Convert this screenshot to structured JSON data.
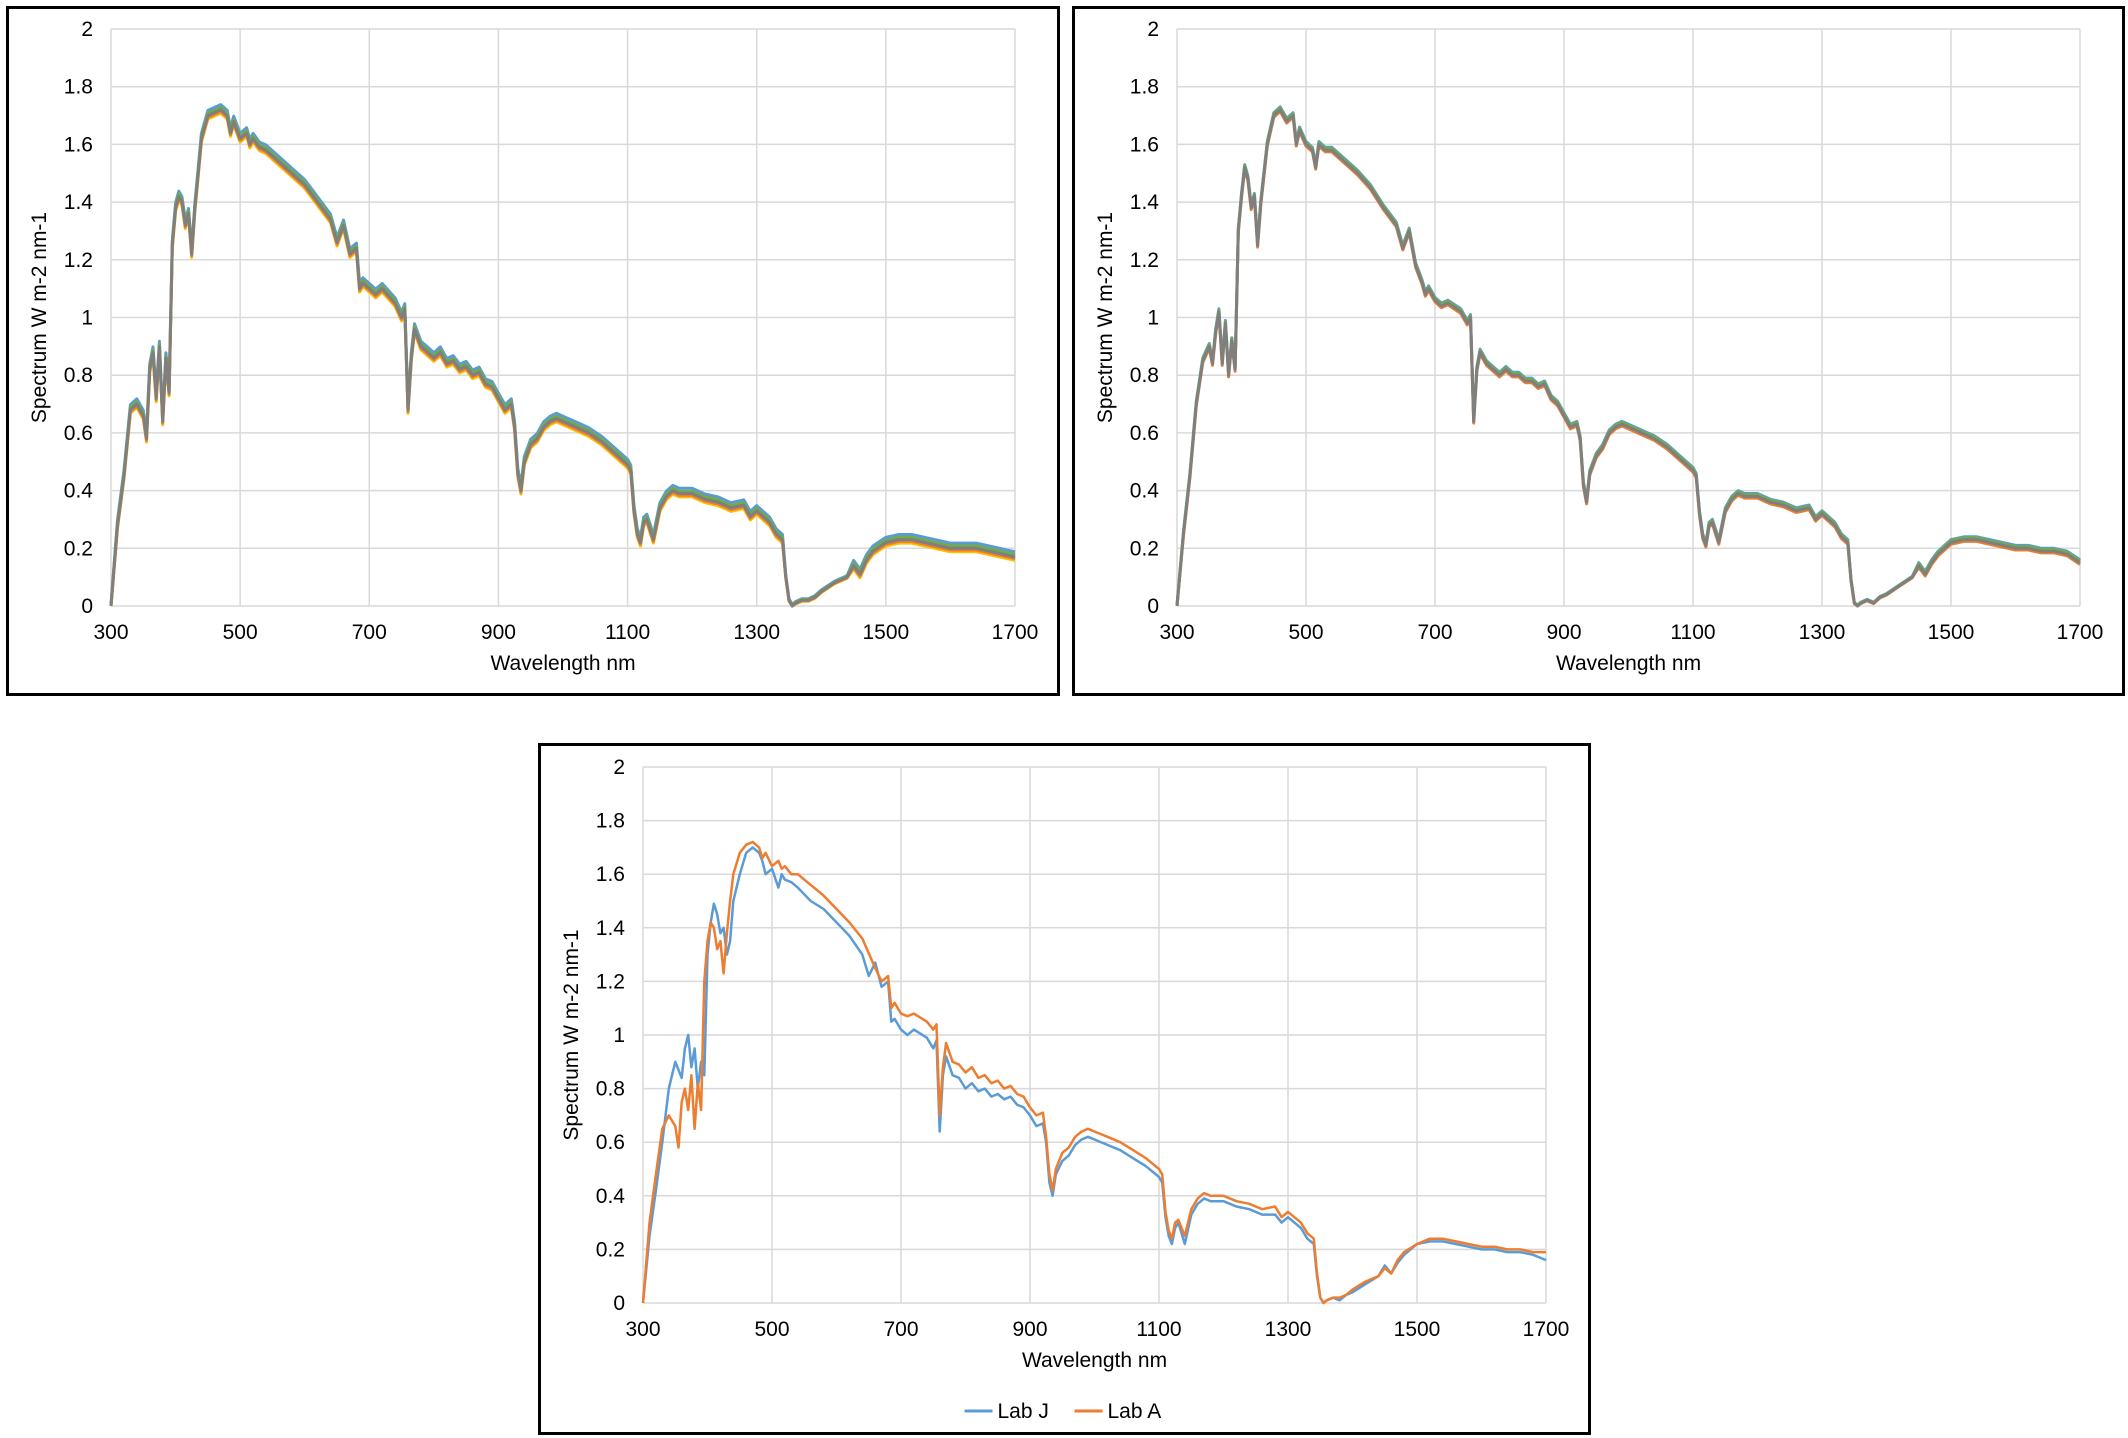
{
  "chart_data": [
    {
      "type": "line",
      "xlabel": "Wavelength nm",
      "ylabel": "Spectrum W m-2 nm-1",
      "xlim": [
        300,
        1700
      ],
      "ylim": [
        0,
        2
      ],
      "xticks": [
        "300",
        "500",
        "700",
        "900",
        "1100",
        "1300",
        "1500",
        "1700"
      ],
      "yticks": [
        "0",
        "0.2",
        "0.4",
        "0.6",
        "0.8",
        "1",
        "1.2",
        "1.4",
        "1.6",
        "1.8",
        "2"
      ],
      "grid": true,
      "legend": "none",
      "series": [
        {
          "color": "#5b9bd5",
          "offset": 0.018
        },
        {
          "color": "#ffc000",
          "offset": -0.012
        },
        {
          "color": "#70ad47",
          "offset": 0.008
        },
        {
          "color": "#ed7d31",
          "offset": -0.006
        },
        {
          "color": "#7f7f7f",
          "offset": 0.0
        }
      ]
    },
    {
      "type": "line",
      "xlabel": "Wavelength nm",
      "ylabel": "Spectrum W m-2 nm-1",
      "xlim": [
        300,
        1700
      ],
      "ylim": [
        0,
        2
      ],
      "xticks": [
        "300",
        "500",
        "700",
        "900",
        "1100",
        "1300",
        "1500",
        "1700"
      ],
      "yticks": [
        "0",
        "0.2",
        "0.4",
        "0.6",
        "0.8",
        "1",
        "1.2",
        "1.4",
        "1.6",
        "1.8",
        "2"
      ],
      "grid": true,
      "legend": "none",
      "series": [
        {
          "color": "#5b9bd5",
          "offset": 0.01
        },
        {
          "color": "#70ad47",
          "offset": 0.006
        },
        {
          "color": "#ed7d31",
          "offset": -0.006
        },
        {
          "color": "#7f7f7f",
          "offset": 0.0
        }
      ]
    },
    {
      "type": "line",
      "xlabel": "Wavelength nm",
      "ylabel": "Spectrum W m-2 nm-1",
      "xlim": [
        300,
        1700
      ],
      "ylim": [
        0,
        2
      ],
      "xticks": [
        "300",
        "500",
        "700",
        "900",
        "1100",
        "1300",
        "1500",
        "1700"
      ],
      "yticks": [
        "0",
        "0.2",
        "0.4",
        "0.6",
        "0.8",
        "1",
        "1.2",
        "1.4",
        "1.6",
        "1.8",
        "2"
      ],
      "grid": true,
      "legend": "bottom-center",
      "series": [
        {
          "name": "Lab J",
          "color": "#5b9bd5",
          "x": [
            300,
            310,
            320,
            330,
            340,
            350,
            360,
            365,
            370,
            375,
            380,
            385,
            390,
            395,
            400,
            405,
            410,
            415,
            420,
            425,
            430,
            435,
            440,
            450,
            460,
            470,
            480,
            485,
            490,
            500,
            510,
            515,
            520,
            530,
            540,
            560,
            580,
            600,
            620,
            640,
            650,
            660,
            670,
            680,
            685,
            690,
            700,
            710,
            720,
            740,
            750,
            755,
            760,
            765,
            770,
            780,
            790,
            800,
            810,
            820,
            830,
            840,
            850,
            860,
            870,
            880,
            890,
            900,
            910,
            920,
            925,
            930,
            935,
            940,
            950,
            960,
            970,
            980,
            990,
            1000,
            1020,
            1040,
            1060,
            1080,
            1100,
            1105,
            1110,
            1115,
            1120,
            1125,
            1130,
            1140,
            1150,
            1160,
            1170,
            1180,
            1200,
            1220,
            1240,
            1260,
            1280,
            1290,
            1300,
            1320,
            1330,
            1340,
            1345,
            1350,
            1355,
            1360,
            1370,
            1380,
            1390,
            1400,
            1420,
            1440,
            1450,
            1460,
            1470,
            1480,
            1500,
            1520,
            1540,
            1560,
            1580,
            1600,
            1620,
            1640,
            1660,
            1680,
            1700
          ],
          "y": [
            0.0,
            0.25,
            0.42,
            0.6,
            0.8,
            0.9,
            0.84,
            0.95,
            1.0,
            0.88,
            0.95,
            0.8,
            0.9,
            0.85,
            1.3,
            1.42,
            1.49,
            1.45,
            1.38,
            1.4,
            1.3,
            1.35,
            1.5,
            1.6,
            1.68,
            1.7,
            1.68,
            1.65,
            1.6,
            1.62,
            1.55,
            1.6,
            1.58,
            1.57,
            1.55,
            1.5,
            1.47,
            1.42,
            1.37,
            1.3,
            1.22,
            1.27,
            1.18,
            1.2,
            1.05,
            1.06,
            1.02,
            1.0,
            1.02,
            0.99,
            0.95,
            0.98,
            0.64,
            0.85,
            0.92,
            0.85,
            0.84,
            0.8,
            0.82,
            0.79,
            0.8,
            0.77,
            0.78,
            0.76,
            0.77,
            0.74,
            0.73,
            0.7,
            0.66,
            0.67,
            0.6,
            0.45,
            0.4,
            0.48,
            0.53,
            0.55,
            0.59,
            0.61,
            0.62,
            0.61,
            0.59,
            0.57,
            0.54,
            0.51,
            0.47,
            0.45,
            0.32,
            0.25,
            0.22,
            0.28,
            0.3,
            0.22,
            0.33,
            0.37,
            0.39,
            0.38,
            0.38,
            0.36,
            0.35,
            0.33,
            0.33,
            0.3,
            0.32,
            0.28,
            0.24,
            0.22,
            0.1,
            0.02,
            0.0,
            0.01,
            0.02,
            0.01,
            0.03,
            0.04,
            0.07,
            0.1,
            0.14,
            0.11,
            0.15,
            0.18,
            0.22,
            0.23,
            0.23,
            0.22,
            0.21,
            0.2,
            0.2,
            0.19,
            0.19,
            0.18,
            0.16
          ]
        },
        {
          "name": "Lab A",
          "color": "#ed7d31",
          "x": [
            300,
            310,
            320,
            330,
            340,
            350,
            355,
            360,
            365,
            370,
            375,
            380,
            385,
            390,
            395,
            400,
            405,
            410,
            415,
            420,
            425,
            430,
            435,
            440,
            450,
            460,
            470,
            480,
            485,
            490,
            500,
            510,
            515,
            520,
            530,
            540,
            560,
            580,
            600,
            620,
            640,
            660,
            670,
            680,
            685,
            690,
            700,
            710,
            720,
            740,
            750,
            755,
            760,
            765,
            770,
            780,
            790,
            800,
            810,
            820,
            830,
            840,
            850,
            860,
            870,
            880,
            890,
            900,
            910,
            920,
            925,
            930,
            935,
            940,
            950,
            960,
            970,
            980,
            990,
            1000,
            1020,
            1040,
            1060,
            1080,
            1100,
            1105,
            1110,
            1115,
            1120,
            1125,
            1130,
            1140,
            1150,
            1160,
            1170,
            1180,
            1200,
            1220,
            1240,
            1260,
            1280,
            1290,
            1300,
            1320,
            1330,
            1340,
            1345,
            1350,
            1355,
            1360,
            1370,
            1380,
            1390,
            1400,
            1420,
            1440,
            1450,
            1460,
            1470,
            1480,
            1500,
            1520,
            1540,
            1560,
            1580,
            1600,
            1620,
            1640,
            1660,
            1680,
            1700
          ],
          "y": [
            0.0,
            0.3,
            0.48,
            0.65,
            0.7,
            0.66,
            0.58,
            0.75,
            0.8,
            0.72,
            0.85,
            0.65,
            0.82,
            0.72,
            1.2,
            1.35,
            1.42,
            1.4,
            1.32,
            1.35,
            1.23,
            1.38,
            1.5,
            1.6,
            1.68,
            1.71,
            1.72,
            1.7,
            1.66,
            1.68,
            1.63,
            1.65,
            1.62,
            1.63,
            1.6,
            1.6,
            1.56,
            1.52,
            1.47,
            1.42,
            1.36,
            1.25,
            1.2,
            1.22,
            1.1,
            1.12,
            1.08,
            1.07,
            1.08,
            1.05,
            1.02,
            1.04,
            0.7,
            0.88,
            0.97,
            0.9,
            0.89,
            0.86,
            0.88,
            0.84,
            0.85,
            0.82,
            0.83,
            0.8,
            0.81,
            0.78,
            0.77,
            0.73,
            0.7,
            0.71,
            0.62,
            0.48,
            0.42,
            0.5,
            0.56,
            0.58,
            0.62,
            0.64,
            0.65,
            0.64,
            0.62,
            0.6,
            0.57,
            0.54,
            0.5,
            0.48,
            0.34,
            0.27,
            0.24,
            0.3,
            0.31,
            0.25,
            0.35,
            0.39,
            0.41,
            0.4,
            0.4,
            0.38,
            0.37,
            0.35,
            0.36,
            0.32,
            0.34,
            0.3,
            0.26,
            0.24,
            0.11,
            0.02,
            0.0,
            0.01,
            0.02,
            0.02,
            0.03,
            0.05,
            0.08,
            0.1,
            0.13,
            0.11,
            0.16,
            0.19,
            0.22,
            0.24,
            0.24,
            0.23,
            0.22,
            0.21,
            0.21,
            0.2,
            0.2,
            0.19,
            0.19
          ]
        }
      ]
    }
  ]
}
